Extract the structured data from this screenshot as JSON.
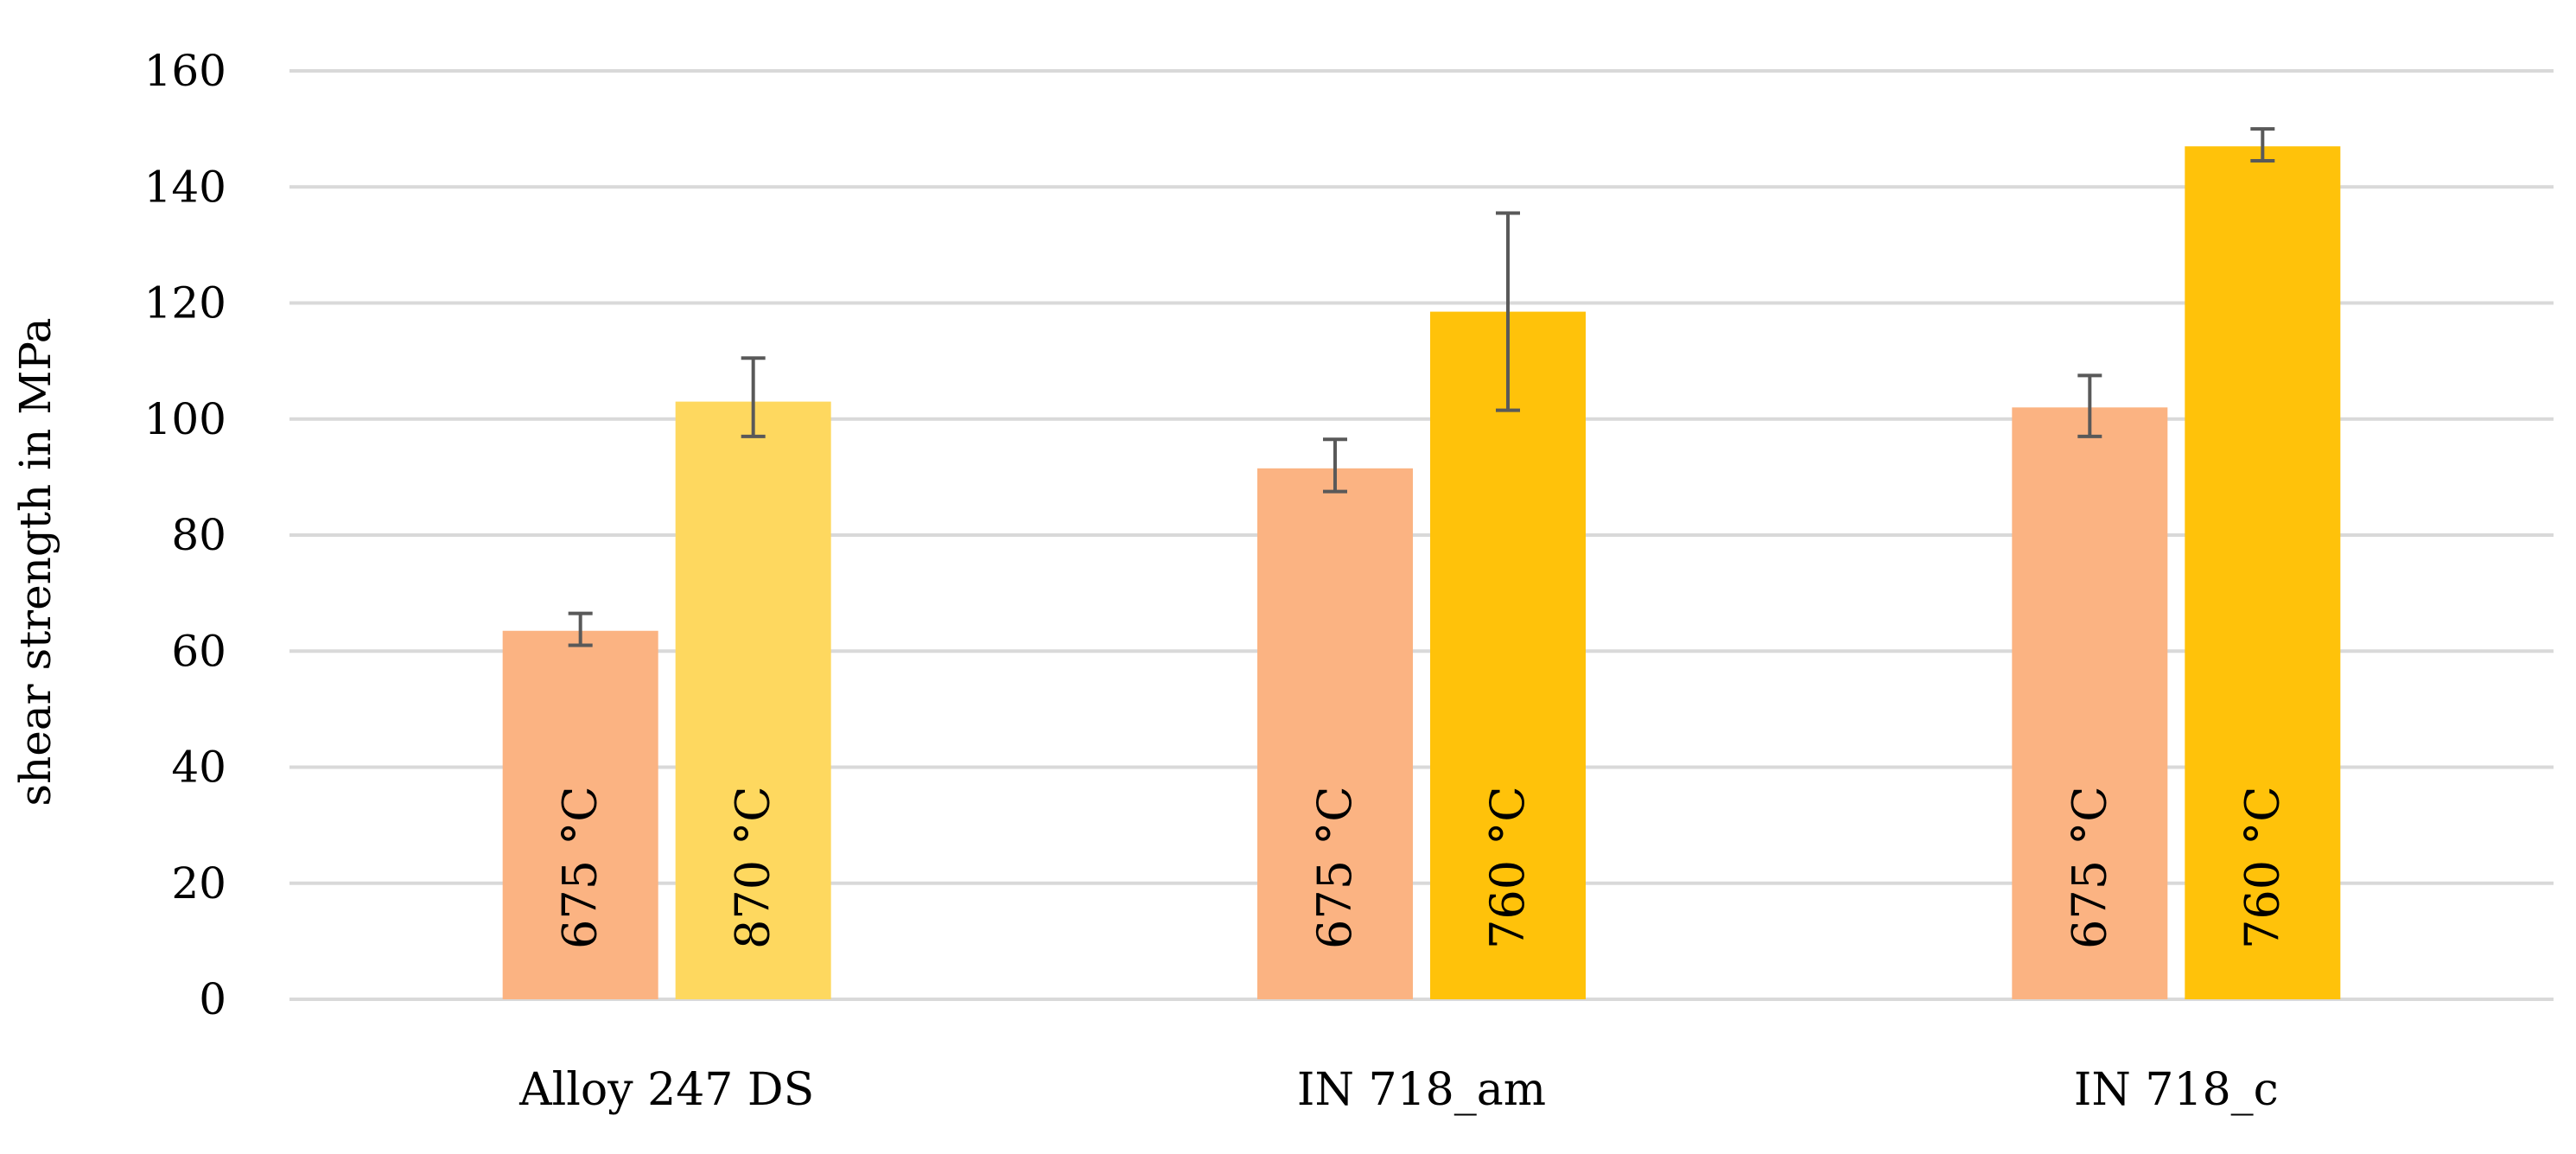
{
  "chart_data": {
    "type": "bar",
    "title": "",
    "xlabel": "",
    "ylabel": "shear strength in MPa",
    "ylim": [
      0,
      160
    ],
    "yticks": [
      0,
      20,
      40,
      60,
      80,
      100,
      120,
      140,
      160
    ],
    "grid": true,
    "legend": "none",
    "categories": [
      "Alloy 247 DS",
      "IN 718_am",
      "IN 718_c"
    ],
    "bars": [
      [
        {
          "label": "675 °C",
          "value": 63.5,
          "err_low": 61,
          "err_high": 66.5,
          "color": "#fbb382"
        },
        {
          "label": "870 °C",
          "value": 103,
          "err_low": 97,
          "err_high": 110.5,
          "color": "#fed85f"
        }
      ],
      [
        {
          "label": "675 °C",
          "value": 91.5,
          "err_low": 87.5,
          "err_high": 96.5,
          "color": "#fbb382"
        },
        {
          "label": "760 °C",
          "value": 118.5,
          "err_low": 101.5,
          "err_high": 135.5,
          "color": "#ffc20a"
        }
      ],
      [
        {
          "label": "675 °C",
          "value": 102,
          "err_low": 97,
          "err_high": 107.5,
          "color": "#fbb382"
        },
        {
          "label": "760 °C",
          "value": 147,
          "err_low": 144.5,
          "err_high": 150,
          "color": "#ffc20a"
        }
      ]
    ]
  }
}
